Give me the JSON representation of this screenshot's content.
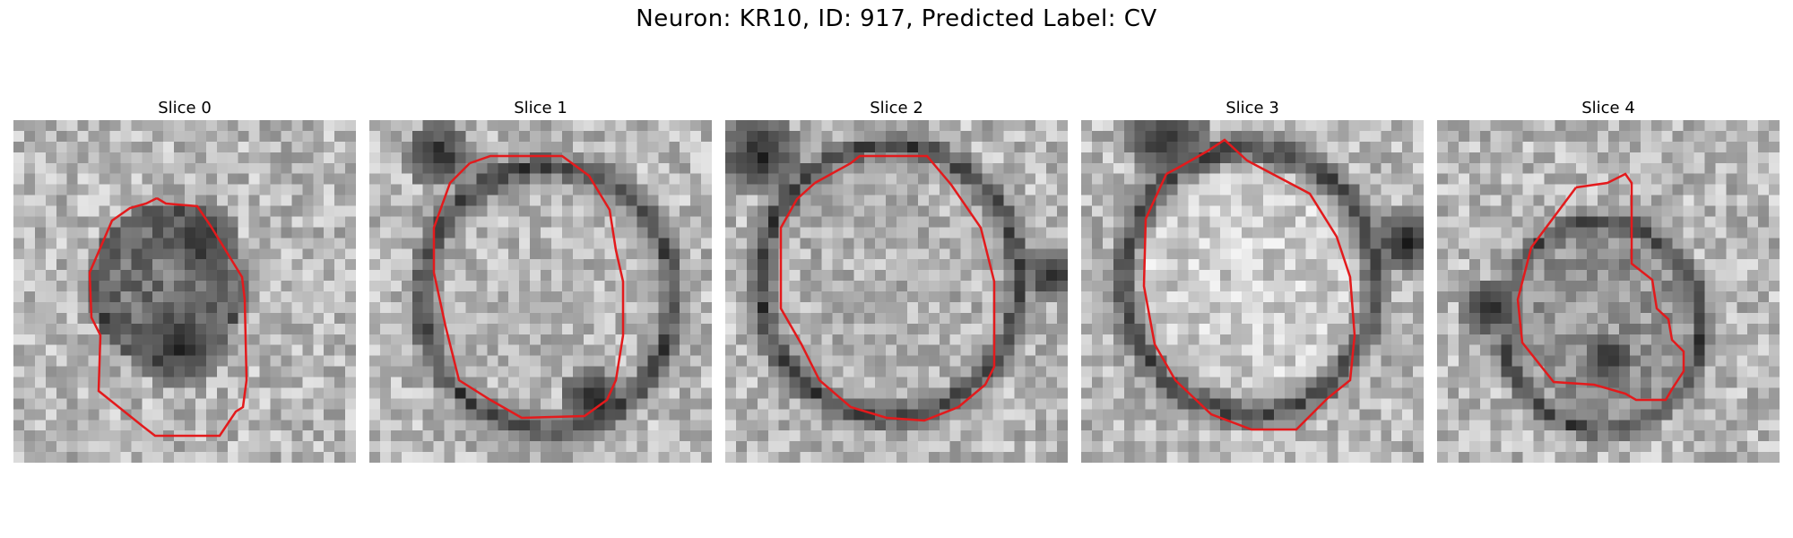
{
  "figure": {
    "title": "Neuron: KR10, ID: 917, Predicted Label: CV"
  },
  "panels": [
    {
      "title": "Slice 0"
    },
    {
      "title": "Slice 1"
    },
    {
      "title": "Slice 2"
    },
    {
      "title": "Slice 3"
    },
    {
      "title": "Slice 4"
    }
  ],
  "colors": {
    "contour": "#e31a1c",
    "background": "#ffffff"
  },
  "image_style": {
    "colormap": "gray",
    "grid_size": 32
  }
}
